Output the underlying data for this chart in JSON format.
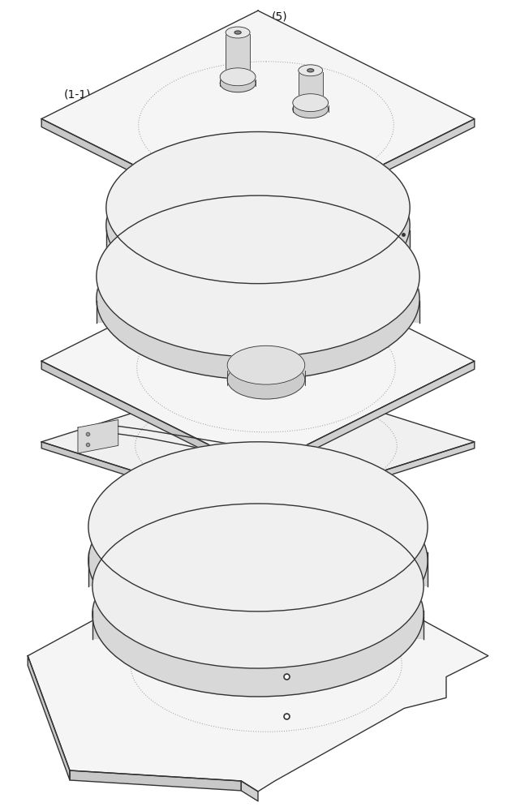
{
  "bg_color": "#ffffff",
  "line_color": "#333333",
  "line_width": 1.0,
  "thin_line": 0.6,
  "dot_color": "#999999",
  "label_color": "#111111",
  "font_size": 10,
  "fill_plate": "#f5f5f5",
  "fill_plate_side": "#d0d0d0",
  "fill_disc": "#f0f0f0",
  "fill_disc_side": "#d5d5d5",
  "fill_disc_dark": "#c8c8c8"
}
